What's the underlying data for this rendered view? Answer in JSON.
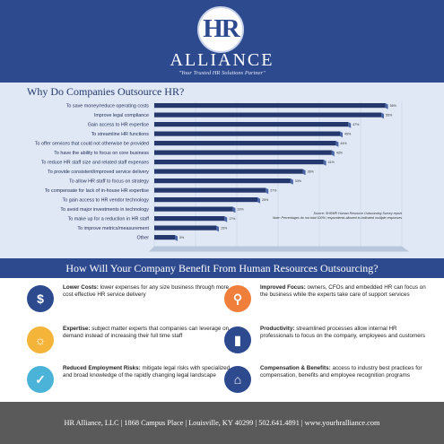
{
  "header": {
    "monogram": "HR",
    "brand": "ALLIANCE",
    "tagline": "\"Your Trusted HR Solutions Partner\""
  },
  "colors": {
    "navy": "#2e4a8f",
    "bar": "#24386d",
    "orange": "#f07f3c",
    "yellow": "#f4b43a",
    "teal": "#4bb3d8",
    "footer_gray": "#5a5a5a"
  },
  "chart_data": {
    "type": "bar",
    "orientation": "horizontal",
    "title": "Why Do Companies Outsource HR?",
    "categories": [
      "To save money/reduce operating costs",
      "Improve legal compliance",
      "Gain access to HR expertise",
      "To streamline HR functions",
      "To offer services that could not otherwise be provided",
      "To have the ability to focus on core business",
      "To reduce HR staff size and related staff expenses",
      "To provide consistent/improved service delivery",
      "To allow HR staff to focus on strategy",
      "To compensate for lack of in-house HR expertise",
      "To gain access to HR vendor technology",
      "To avoid major investments in technology",
      "To make up for a reduction in HR staff",
      "To improve metrics/measurement",
      "Other"
    ],
    "values": [
      56,
      55,
      47,
      45,
      44,
      43,
      41,
      36,
      33,
      27,
      25,
      19,
      17,
      15,
      5
    ],
    "value_labels": [
      "56%",
      "55%",
      "47%",
      "45%",
      "44%",
      "43%",
      "41%",
      "36%",
      "33%",
      "27%",
      "25%",
      "19%",
      "17%",
      "15%",
      "5%"
    ],
    "xlim": [
      0,
      60
    ],
    "xticks": [
      "0%",
      "10%",
      "20%",
      "30%",
      "40%",
      "50%",
      "60%"
    ],
    "source": "Source: SHRM® Human Resource Outsourcing Survey report",
    "note": "Note: Percentages do not total 100%; respondents allowed to indicated multiple responses"
  },
  "banner": {
    "title": "How Will Your Company Benefit From Human Resources Outsourcing?"
  },
  "benefits": [
    {
      "icon": "dollar-icon",
      "color": "#2e4a8f",
      "glyph": "$",
      "heading": "Lower Costs:",
      "text": " lower expenses for any size business through more cost effective HR service delivery"
    },
    {
      "icon": "magnifier-icon",
      "color": "#f07f3c",
      "glyph": "⚲",
      "heading": "Improved Focus:",
      "text": " owners, CFOs and embedded HR can focus on the business while the experts take care of support services"
    },
    {
      "icon": "lightbulb-icon",
      "color": "#f4b43a",
      "glyph": "☼",
      "heading": "Expertise:",
      "text": " subject matter experts that companies can leverage on demand instead of increasing their full time staff"
    },
    {
      "icon": "bar-chart-icon",
      "color": "#2e4a8f",
      "glyph": "▮",
      "heading": "Productivity:",
      "text": " streamlined processes allow internal HR professionals to focus on the company, employees and customers"
    },
    {
      "icon": "checklist-icon",
      "color": "#4bb3d8",
      "glyph": "✓",
      "heading": "Reduced Employment Risks:",
      "text": " mitigate legal risks with specialized and broad knowledge of the rapidly changing legal landscape"
    },
    {
      "icon": "gift-icon",
      "color": "#2e4a8f",
      "glyph": "⌂",
      "heading": "Compensation & Benefits:",
      "text": " access to industry best practices for compensation, benefits and employee recognition programs"
    }
  ],
  "footer": {
    "text": "HR Alliance, LLC | 1868 Campus Place | Louisville, KY 40299 | 502.641.4891 | www.yourhralliance.com"
  }
}
